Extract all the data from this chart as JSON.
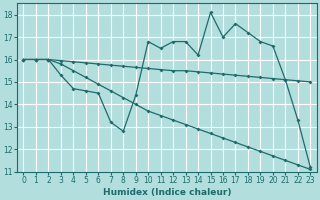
{
  "xlabel": "Humidex (Indice chaleur)",
  "bg_color": "#b2dede",
  "grid_color": "#ffffff",
  "line_color": "#1f6b6b",
  "ylim": [
    11,
    18.5
  ],
  "xlim": [
    -0.5,
    23.5
  ],
  "yticks": [
    11,
    12,
    13,
    14,
    15,
    16,
    17,
    18
  ],
  "xticks": [
    0,
    1,
    2,
    3,
    4,
    5,
    6,
    7,
    8,
    9,
    10,
    11,
    12,
    13,
    14,
    15,
    16,
    17,
    18,
    19,
    20,
    21,
    22,
    23
  ],
  "line1_x": [
    0,
    1,
    2,
    3,
    4,
    5,
    6,
    7,
    8,
    9,
    10,
    11,
    12,
    13,
    14,
    15,
    16,
    17,
    18,
    19,
    20,
    21,
    22,
    23
  ],
  "line1_y": [
    16.0,
    16.0,
    16.0,
    15.95,
    15.9,
    15.85,
    15.8,
    15.75,
    15.7,
    15.65,
    15.6,
    15.55,
    15.5,
    15.5,
    15.45,
    15.4,
    15.35,
    15.3,
    15.25,
    15.2,
    15.15,
    15.1,
    15.05,
    15.0
  ],
  "line2_x": [
    0,
    1,
    2,
    3,
    4,
    5,
    6,
    7,
    8,
    9,
    10,
    11,
    12,
    13,
    14,
    15,
    16,
    17,
    18,
    19,
    20,
    21,
    22,
    23
  ],
  "line2_y": [
    16.0,
    16.0,
    16.0,
    15.3,
    14.7,
    14.6,
    14.5,
    13.2,
    12.8,
    14.4,
    16.8,
    16.5,
    16.8,
    16.8,
    16.2,
    18.1,
    17.0,
    17.6,
    17.2,
    16.8,
    16.6,
    15.1,
    13.3,
    11.2
  ],
  "line3_x": [
    0,
    1,
    2,
    3,
    4,
    5,
    6,
    7,
    8,
    9,
    10,
    11,
    12,
    13,
    14,
    15,
    16,
    17,
    18,
    19,
    20,
    21,
    22,
    23
  ],
  "line3_y": [
    16.0,
    16.0,
    16.0,
    15.8,
    15.5,
    15.2,
    14.9,
    14.6,
    14.3,
    14.0,
    13.7,
    13.5,
    13.3,
    13.1,
    12.9,
    12.7,
    12.5,
    12.3,
    12.1,
    11.9,
    11.7,
    11.5,
    11.3,
    11.1
  ]
}
